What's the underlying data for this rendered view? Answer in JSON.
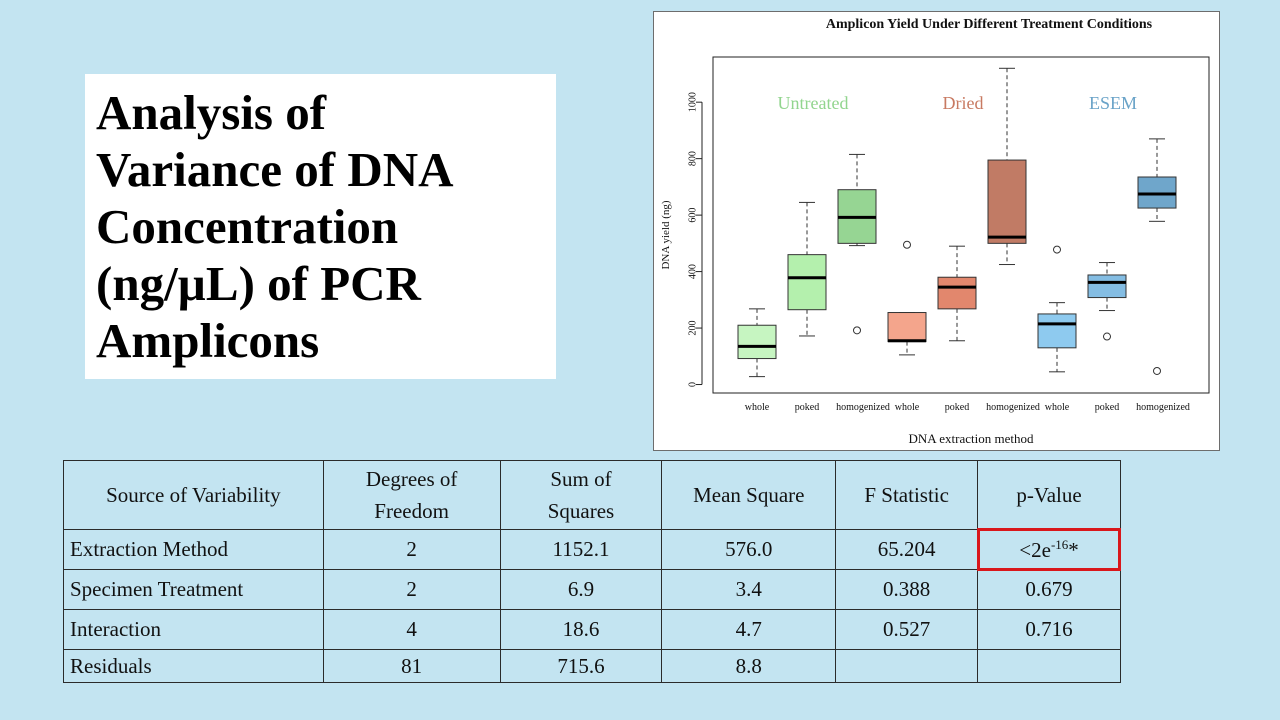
{
  "slide": {
    "title": "Analysis of\nVariance of DNA\nConcentration\n(ng/µL) of PCR\nAmplicons"
  },
  "chart_data": {
    "type": "box",
    "title": "Amplicon Yield Under Different Treatment Conditions",
    "xlabel": "DNA extraction method",
    "ylabel": "DNA yield (ng)",
    "ylim": [
      -30,
      1160
    ],
    "yticks": [
      0,
      200,
      400,
      600,
      800,
      1000
    ],
    "categories": [
      "whole",
      "poked",
      "homogenized",
      "whole",
      "poked",
      "homogenized",
      "whole",
      "poked",
      "homogenized"
    ],
    "group_labels": [
      "Untreated",
      "Dried",
      "ESEM"
    ],
    "group_colors": [
      "#92d58e",
      "#c87a62",
      "#6aa3c8"
    ],
    "boxes": [
      {
        "group": 0,
        "color": "#c6f5c1",
        "whisker_low": 28,
        "q1": 92,
        "median": 135,
        "q3": 210,
        "whisker_high": 268,
        "outliers": []
      },
      {
        "group": 0,
        "color": "#b4f0ad",
        "whisker_low": 172,
        "q1": 265,
        "median": 378,
        "q3": 460,
        "whisker_high": 645,
        "outliers": []
      },
      {
        "group": 0,
        "color": "#96d593",
        "whisker_low": 492,
        "q1": 500,
        "median": 592,
        "q3": 690,
        "whisker_high": 815,
        "outliers": [
          192
        ]
      },
      {
        "group": 1,
        "color": "#f4a58c",
        "whisker_low": 105,
        "q1": 152,
        "median": 155,
        "q3": 255,
        "whisker_high": 255,
        "outliers": [
          495
        ]
      },
      {
        "group": 1,
        "color": "#e2876d",
        "whisker_low": 155,
        "q1": 268,
        "median": 345,
        "q3": 380,
        "whisker_high": 490,
        "outliers": []
      },
      {
        "group": 1,
        "color": "#c17b65",
        "whisker_low": 425,
        "q1": 500,
        "median": 522,
        "q3": 795,
        "whisker_high": 1120,
        "outliers": []
      },
      {
        "group": 2,
        "color": "#8ecaef",
        "whisker_low": 45,
        "q1": 130,
        "median": 215,
        "q3": 250,
        "whisker_high": 290,
        "outliers": [
          478
        ]
      },
      {
        "group": 2,
        "color": "#84bde3",
        "whisker_low": 262,
        "q1": 308,
        "median": 362,
        "q3": 388,
        "whisker_high": 432,
        "outliers": [
          170
        ]
      },
      {
        "group": 2,
        "color": "#6fa6cb",
        "whisker_low": 578,
        "q1": 625,
        "median": 675,
        "q3": 735,
        "whisker_high": 870,
        "outliers": [
          48
        ]
      }
    ]
  },
  "table": {
    "headers": [
      "Source of Variability",
      "Degrees of\nFreedom",
      "Sum of\nSquares",
      "Mean Square",
      "F Statistic",
      "p-Value"
    ],
    "rows": [
      [
        "Extraction Method",
        "2",
        "1152.1",
        "576.0",
        "65.204",
        ""
      ],
      [
        "Specimen Treatment",
        "2",
        "6.9",
        "3.4",
        "0.388",
        "0.679"
      ],
      [
        "Interaction",
        "4",
        "18.6",
        "4.7",
        "0.527",
        "0.716"
      ],
      [
        "Residuals",
        "81",
        "715.6",
        "8.8",
        "",
        ""
      ]
    ],
    "highlight_p": {
      "prefix": "<2e",
      "exponent": "-16",
      "suffix": "*"
    },
    "highlight_color": "#d9161b"
  }
}
